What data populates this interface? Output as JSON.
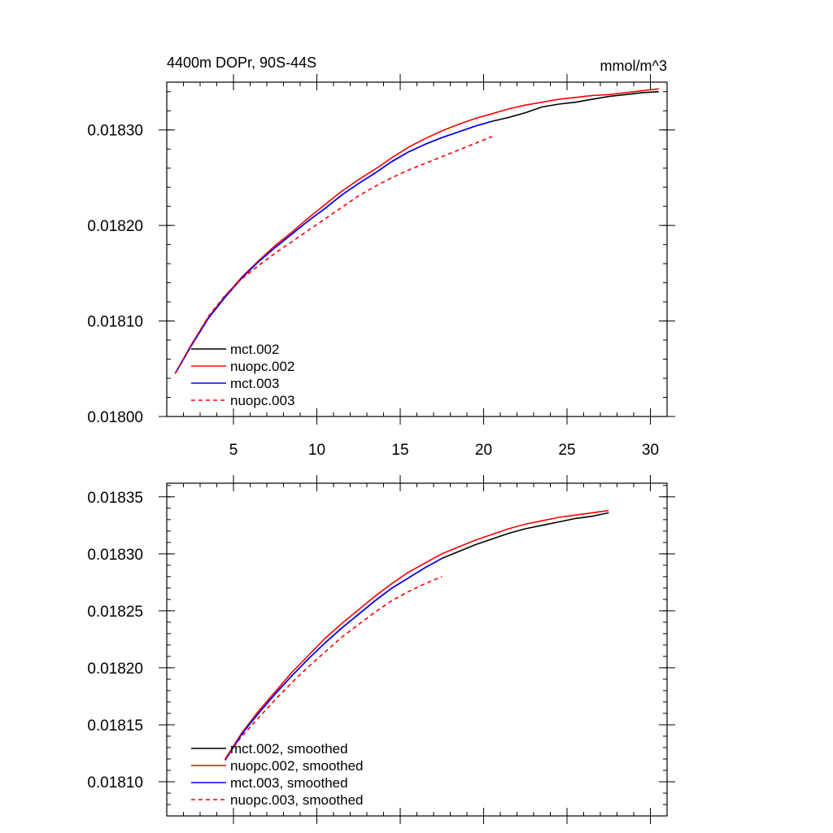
{
  "chart_data": [
    {
      "type": "line",
      "title": "4400m DOPr, 90S-44S",
      "units": "mmol/m^3",
      "xlim": [
        1,
        31
      ],
      "ylim": [
        0.018,
        0.01835
      ],
      "x_ticks": [
        5,
        10,
        15,
        20,
        25,
        30
      ],
      "y_ticks": [
        0.018,
        0.0181,
        0.0182,
        0.0183
      ],
      "y_tick_labels": [
        "0.01800",
        "0.01810",
        "0.01820",
        "0.01830"
      ],
      "grid": false,
      "legend_position": "bottom-left",
      "series": [
        {
          "name": "mct.002",
          "color": "#000000",
          "dash": "solid",
          "x": [
            1.5,
            2.5,
            3.5,
            4.5,
            5.5,
            6.5,
            7.5,
            8.5,
            9.5,
            10.5,
            11.5,
            12.5,
            13.5,
            14.5,
            15.5,
            16.5,
            17.5,
            18.5,
            19.5,
            20.5,
            21.5,
            22.5,
            23.5,
            24.5,
            25.5,
            26.5,
            27.5,
            28.5,
            29.5,
            30.5
          ],
          "y": [
            0.018045,
            0.018075,
            0.018103,
            0.018125,
            0.018145,
            0.018162,
            0.018177,
            0.018191,
            0.018205,
            0.018218,
            0.018232,
            0.018244,
            0.018255,
            0.018267,
            0.018277,
            0.018285,
            0.018292,
            0.018298,
            0.018304,
            0.018309,
            0.018313,
            0.018318,
            0.018324,
            0.018327,
            0.018329,
            0.018332,
            0.018335,
            0.018337,
            0.018339,
            0.01834
          ]
        },
        {
          "name": "nuopc.002",
          "color": "#ff0000",
          "dash": "solid",
          "x": [
            1.5,
            2.5,
            3.5,
            4.5,
            5.5,
            6.5,
            7.5,
            8.5,
            9.5,
            10.5,
            11.5,
            12.5,
            13.5,
            14.5,
            15.5,
            16.5,
            17.5,
            18.5,
            19.5,
            20.5,
            21.5,
            22.5,
            23.5,
            24.5,
            25.5,
            26.5,
            27.5,
            28.5,
            29.5,
            30.5
          ],
          "y": [
            0.018045,
            0.018076,
            0.018104,
            0.018126,
            0.018146,
            0.018163,
            0.018179,
            0.018193,
            0.018208,
            0.018222,
            0.018236,
            0.018248,
            0.018259,
            0.018271,
            0.018282,
            0.018291,
            0.018299,
            0.018306,
            0.018312,
            0.018317,
            0.018322,
            0.018326,
            0.018329,
            0.018332,
            0.018334,
            0.018336,
            0.018337,
            0.018339,
            0.018341,
            0.018343
          ]
        },
        {
          "name": "mct.003",
          "color": "#0000ff",
          "dash": "solid",
          "x": [
            1.5,
            2.5,
            3.5,
            4.5,
            5.5,
            6.5,
            7.5,
            8.5,
            9.5,
            10.5,
            11.5,
            12.5,
            13.5,
            14.5,
            15.5,
            16.5,
            17.5,
            18.5,
            19.5,
            20.5
          ],
          "y": [
            0.018045,
            0.018075,
            0.018103,
            0.018125,
            0.018145,
            0.018162,
            0.018177,
            0.018191,
            0.018205,
            0.018218,
            0.018232,
            0.018244,
            0.018255,
            0.018267,
            0.018277,
            0.018285,
            0.018292,
            0.018298,
            0.018304,
            0.018309
          ]
        },
        {
          "name": "nuopc.003",
          "color": "#ff0000",
          "dash": "dashed",
          "x": [
            1.5,
            2.5,
            3.5,
            4.5,
            5.5,
            6.5,
            7.5,
            8.5,
            9.5,
            10.5,
            11.5,
            12.5,
            13.5,
            14.5,
            15.5,
            16.5,
            17.5,
            18.5,
            19.5,
            20.5
          ],
          "y": [
            0.018045,
            0.018076,
            0.018105,
            0.018127,
            0.018144,
            0.018158,
            0.018171,
            0.018183,
            0.018195,
            0.018207,
            0.018219,
            0.018231,
            0.018241,
            0.01825,
            0.018258,
            0.018265,
            0.018272,
            0.018279,
            0.018286,
            0.018293
          ]
        }
      ]
    },
    {
      "type": "line",
      "xlim": [
        1,
        31
      ],
      "ylim": [
        0.01807,
        0.018362
      ],
      "x_ticks": [
        5,
        10,
        15,
        20,
        25,
        30
      ],
      "y_ticks": [
        0.0181,
        0.01815,
        0.0182,
        0.01825,
        0.0183,
        0.01835
      ],
      "y_tick_labels": [
        "0.01810",
        "0.01815",
        "0.01820",
        "0.01825",
        "0.01830",
        "0.01835"
      ],
      "grid": false,
      "legend_position": "bottom-left",
      "series": [
        {
          "name": "mct.002, smoothed",
          "color": "#000000",
          "dash": "solid",
          "x": [
            4.5,
            5.5,
            6.5,
            7.5,
            8.5,
            9.5,
            10.5,
            11.5,
            12.5,
            13.5,
            14.5,
            15.5,
            16.5,
            17.5,
            18.5,
            19.5,
            20.5,
            21.5,
            22.5,
            23.5,
            24.5,
            25.5,
            26.5,
            27.5
          ],
          "y": [
            0.018119,
            0.018142,
            0.01816,
            0.018177,
            0.018193,
            0.018208,
            0.018222,
            0.018235,
            0.018247,
            0.018259,
            0.01827,
            0.018279,
            0.018288,
            0.018296,
            0.018302,
            0.018308,
            0.018313,
            0.018318,
            0.018322,
            0.018325,
            0.018328,
            0.018331,
            0.018333,
            0.018336
          ]
        },
        {
          "name": "nuopc.002, smoothed",
          "color": "#ff0000",
          "dash": "solid",
          "x": [
            4.5,
            5.5,
            6.5,
            7.5,
            8.5,
            9.5,
            10.5,
            11.5,
            12.5,
            13.5,
            14.5,
            15.5,
            16.5,
            17.5,
            18.5,
            19.5,
            20.5,
            21.5,
            22.5,
            23.5,
            24.5,
            25.5,
            26.5,
            27.5
          ],
          "y": [
            0.01812,
            0.018143,
            0.018162,
            0.018179,
            0.018196,
            0.018211,
            0.018226,
            0.018239,
            0.018251,
            0.018263,
            0.018274,
            0.018284,
            0.018292,
            0.0183,
            0.018306,
            0.018312,
            0.018317,
            0.018322,
            0.018326,
            0.018329,
            0.018332,
            0.018334,
            0.018336,
            0.018338
          ]
        },
        {
          "name": "mct.003, smoothed",
          "color": "#0000ff",
          "dash": "solid",
          "x": [
            4.5,
            5.5,
            6.5,
            7.5,
            8.5,
            9.5,
            10.5,
            11.5,
            12.5,
            13.5,
            14.5,
            15.5,
            16.5,
            17.5
          ],
          "y": [
            0.018119,
            0.018142,
            0.01816,
            0.018177,
            0.018193,
            0.018208,
            0.018222,
            0.018235,
            0.018247,
            0.018259,
            0.01827,
            0.018279,
            0.018288,
            0.018296
          ]
        },
        {
          "name": "nuopc.003, smoothed",
          "color": "#ff0000",
          "dash": "dashed",
          "x": [
            4.5,
            5.5,
            6.5,
            7.5,
            8.5,
            9.5,
            10.5,
            11.5,
            12.5,
            13.5,
            14.5,
            15.5,
            16.5,
            17.5
          ],
          "y": [
            0.01812,
            0.01814,
            0.018156,
            0.018172,
            0.018187,
            0.018201,
            0.018214,
            0.018227,
            0.018238,
            0.018249,
            0.018259,
            0.018267,
            0.018274,
            0.01828
          ]
        }
      ]
    }
  ]
}
